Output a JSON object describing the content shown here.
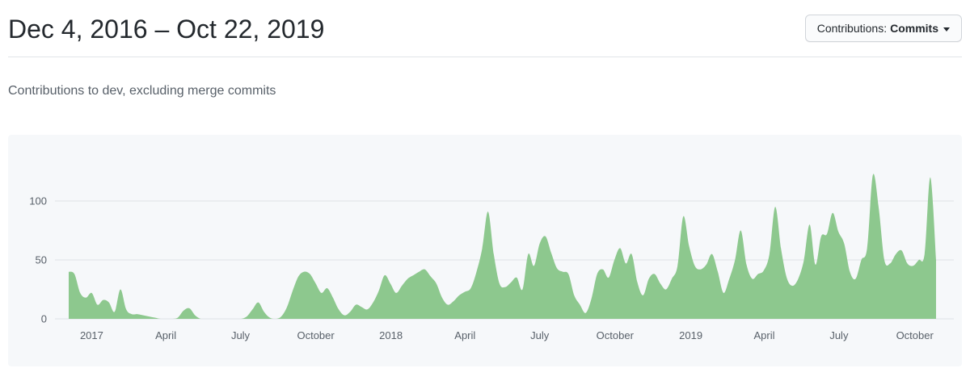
{
  "header": {
    "title": "Dec 4, 2016 – Oct 22, 2019",
    "filter_button": {
      "label": "Contributions:",
      "value": "Commits"
    }
  },
  "subtitle": "Contributions to dev, excluding merge commits",
  "colors": {
    "area_green": "#8dc88e",
    "panel_bg": "#f6f8fa",
    "grid": "#dfe2e5",
    "axis_text": "#586069"
  },
  "chart_data": {
    "type": "area",
    "title": "Contributions to dev, excluding merge commits",
    "series_name": "Commits",
    "unit": "commits per week",
    "interval": "weekly",
    "x_start_date": "2016-12-04",
    "x_end_date": "2019-10-22",
    "ylim": [
      0,
      150
    ],
    "grid": true,
    "legend": "none",
    "y_ticks": [
      0,
      50,
      100
    ],
    "x_ticks": [
      {
        "label": "2017",
        "week_index": 4
      },
      {
        "label": "April",
        "week_index": 16.9
      },
      {
        "label": "July",
        "week_index": 29.9
      },
      {
        "label": "October",
        "week_index": 43
      },
      {
        "label": "2018",
        "week_index": 56.1
      },
      {
        "label": "April",
        "week_index": 69
      },
      {
        "label": "July",
        "week_index": 82
      },
      {
        "label": "October",
        "week_index": 95.1
      },
      {
        "label": "2019",
        "week_index": 108.3
      },
      {
        "label": "April",
        "week_index": 121.1
      },
      {
        "label": "July",
        "week_index": 134.1
      },
      {
        "label": "October",
        "week_index": 147.3
      }
    ],
    "values": [
      40,
      38,
      22,
      18,
      22,
      12,
      16,
      14,
      6,
      25,
      8,
      4,
      4,
      3,
      2,
      1,
      0,
      0,
      0,
      1,
      7,
      9,
      3,
      0,
      0,
      0,
      0,
      0,
      0,
      0,
      0,
      2,
      8,
      14,
      6,
      1,
      0,
      2,
      10,
      24,
      36,
      40,
      38,
      30,
      22,
      26,
      18,
      8,
      3,
      6,
      12,
      10,
      8,
      14,
      24,
      37,
      30,
      22,
      28,
      34,
      37,
      40,
      42,
      36,
      30,
      18,
      12,
      15,
      20,
      23,
      26,
      40,
      60,
      91,
      55,
      30,
      27,
      31,
      35,
      25,
      55,
      45,
      64,
      70,
      56,
      43,
      40,
      38,
      20,
      12,
      5,
      17,
      38,
      42,
      35,
      50,
      60,
      47,
      55,
      31,
      20,
      34,
      38,
      30,
      25,
      34,
      45,
      87,
      62,
      45,
      42,
      46,
      55,
      40,
      22,
      34,
      50,
      75,
      46,
      34,
      38,
      41,
      55,
      95,
      60,
      35,
      28,
      34,
      50,
      80,
      46,
      70,
      72,
      90,
      74,
      64,
      40,
      34,
      50,
      60,
      122,
      95,
      50,
      47,
      55,
      58,
      47,
      45,
      50,
      55,
      120,
      50
    ]
  }
}
